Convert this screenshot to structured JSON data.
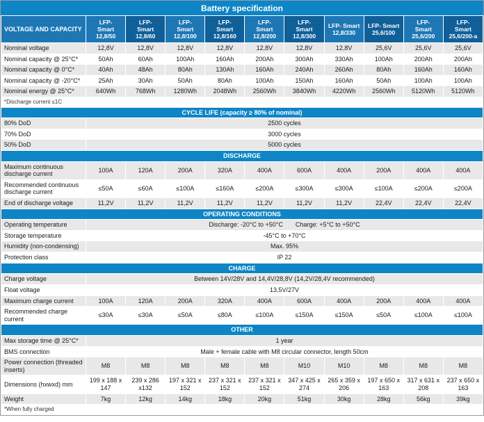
{
  "title": "Battery specification",
  "colors": {
    "title_bar": "#0d85c6",
    "section_bar": "#0d85c6",
    "header_light": "#1d77b5",
    "header_dark": "#0f5f99",
    "row_gray": "#e8e8e9",
    "row_white": "#ffffff"
  },
  "header": {
    "label": "VOLTAGE AND CAPACITY",
    "models": [
      "LFP-\nSmart\n12,8/50",
      "LFP-\nSmart\n12,8/60",
      "LFP-\nSmart\n12,8/100",
      "LFP-\nSmart\n12,8/160",
      "LFP-\nSmart\n12,8/200",
      "LFP-\nSmart\n12,8/300",
      "LFP- Smart\n12,8/330",
      "LFP- Smart\n25,6/100",
      "LFP-\nSmart\n25,6/200",
      "LFP-\nSmart\n25,6/200-a"
    ]
  },
  "rows": [
    {
      "type": "values",
      "label": "Nominal voltage",
      "values": [
        "12,8V",
        "12,8V",
        "12,8V",
        "12,8V",
        "12,8V",
        "12,8V",
        "12,8V",
        "25,6V",
        "25,6V",
        "25,6V"
      ]
    },
    {
      "type": "values",
      "label": "Nominal capacity @ 25°C*",
      "values": [
        "50Ah",
        "60Ah",
        "100Ah",
        "160Ah",
        "200Ah",
        "300Ah",
        "330Ah",
        "100Ah",
        "200Ah",
        "200Ah"
      ]
    },
    {
      "type": "values",
      "label": "Nominal capacity @ 0°C*",
      "values": [
        "40Ah",
        "48Ah",
        "80Ah",
        "130Ah",
        "160Ah",
        "240Ah",
        "260Ah",
        "80Ah",
        "160Ah",
        "160Ah"
      ]
    },
    {
      "type": "values",
      "label": "Nominal capacity @ -20°C*",
      "values": [
        "25Ah",
        "30Ah",
        "50Ah",
        "80Ah",
        "100Ah",
        "150Ah",
        "160Ah",
        "50Ah",
        "100Ah",
        "100Ah"
      ]
    },
    {
      "type": "values",
      "label": "Nominal energy @ 25°C*",
      "values": [
        "640Wh",
        "768Wh",
        "1280Wh",
        "2048Wh",
        "2560Wh",
        "3840Wh",
        "4220Wh",
        "2560Wh",
        "5120Wh",
        "5120Wh"
      ]
    },
    {
      "type": "note",
      "label": "*Discharge current ≤1C"
    },
    {
      "type": "section",
      "label": "CYCLE LIFE (capacity ≥ 80% of nominal)"
    },
    {
      "type": "span",
      "label": "80% DoD",
      "value": "2500 cycles"
    },
    {
      "type": "span",
      "label": "70% DoD",
      "value": "3000 cycles"
    },
    {
      "type": "span",
      "label": "50% DoD",
      "value": "5000 cycles"
    },
    {
      "type": "section",
      "label": "DISCHARGE"
    },
    {
      "type": "values",
      "label": "Maximum continuous discharge current",
      "values": [
        "100A",
        "120A",
        "200A",
        "320A",
        "400A",
        "600A",
        "400A",
        "200A",
        "400A",
        "400A"
      ]
    },
    {
      "type": "values",
      "label": "Recommended continuous discharge current",
      "values": [
        "≤50A",
        "≤60A",
        "≤100A",
        "≤160A",
        "≤200A",
        "≤300A",
        "≤300A",
        "≤100A",
        "≤200A",
        "≤200A"
      ]
    },
    {
      "type": "values",
      "label": "End of discharge voltage",
      "values": [
        "11,2V",
        "11,2V",
        "11,2V",
        "11,2V",
        "11,2V",
        "11,2V",
        "11,2V",
        "22,4V",
        "22,4V",
        "22,4V"
      ]
    },
    {
      "type": "section",
      "label": "OPERATING CONDITIONS"
    },
    {
      "type": "span",
      "label": "Operating temperature",
      "value": "Discharge: -20°C to +50°C  Charge: +5°C to +50°C"
    },
    {
      "type": "span",
      "label": "Storage temperature",
      "value": "-45°C to +70°C"
    },
    {
      "type": "span",
      "label": "Humidity (non-condensing)",
      "value": "Max. 95%"
    },
    {
      "type": "span",
      "label": "Protection class",
      "value": "IP 22"
    },
    {
      "type": "section",
      "label": "CHARGE"
    },
    {
      "type": "span",
      "label": "Charge voltage",
      "value": "Between 14V/28V and 14,4V/28,8V (14,2V/28,4V recommended)"
    },
    {
      "type": "span",
      "label": "Float voltage",
      "value": "13,5V/27V"
    },
    {
      "type": "values",
      "label": "Maximum charge current",
      "values": [
        "100A",
        "120A",
        "200A",
        "320A",
        "400A",
        "600A",
        "400A",
        "200A",
        "400A",
        "400A"
      ]
    },
    {
      "type": "values",
      "label": "Recommended charge current",
      "values": [
        "≤30A",
        "≤30A",
        "≤50A",
        "≤80A",
        "≤100A",
        "≤150A",
        "≤150A",
        "≤50A",
        "≤100A",
        "≤100A"
      ]
    },
    {
      "type": "section",
      "label": "OTHER"
    },
    {
      "type": "span",
      "label": "Max storage time @ 25°C*",
      "value": "1 year"
    },
    {
      "type": "span",
      "label": "BMS connection",
      "value": "Male + female cable with M8 circular connector, length 50cm"
    },
    {
      "type": "values",
      "label": "Power connection (threaded inserts)",
      "values": [
        "M8",
        "M8",
        "M8",
        "M8",
        "M8",
        "M10",
        "M10",
        "M8",
        "M8",
        "M8"
      ]
    },
    {
      "type": "values",
      "label": "Dimensions (hxwxd) mm",
      "values": [
        "199 x 188 x 147",
        "239 x 286 x132",
        "197 x 321 x 152",
        "237 x 321 x 152",
        "237 x 321 x 152",
        "347 x 425 x 274",
        "265 x 359 x 206",
        "197 x 650 x 163",
        "317 x 631 x 208",
        "237 x 650 x 163"
      ]
    },
    {
      "type": "values",
      "label": "Weight",
      "values": [
        "7kg",
        "12kg",
        "14kg",
        "18kg",
        "20kg",
        "51kg",
        "30kg",
        "28kg",
        "56kg",
        "39kg"
      ]
    },
    {
      "type": "note",
      "label": "*When fully charged"
    }
  ]
}
